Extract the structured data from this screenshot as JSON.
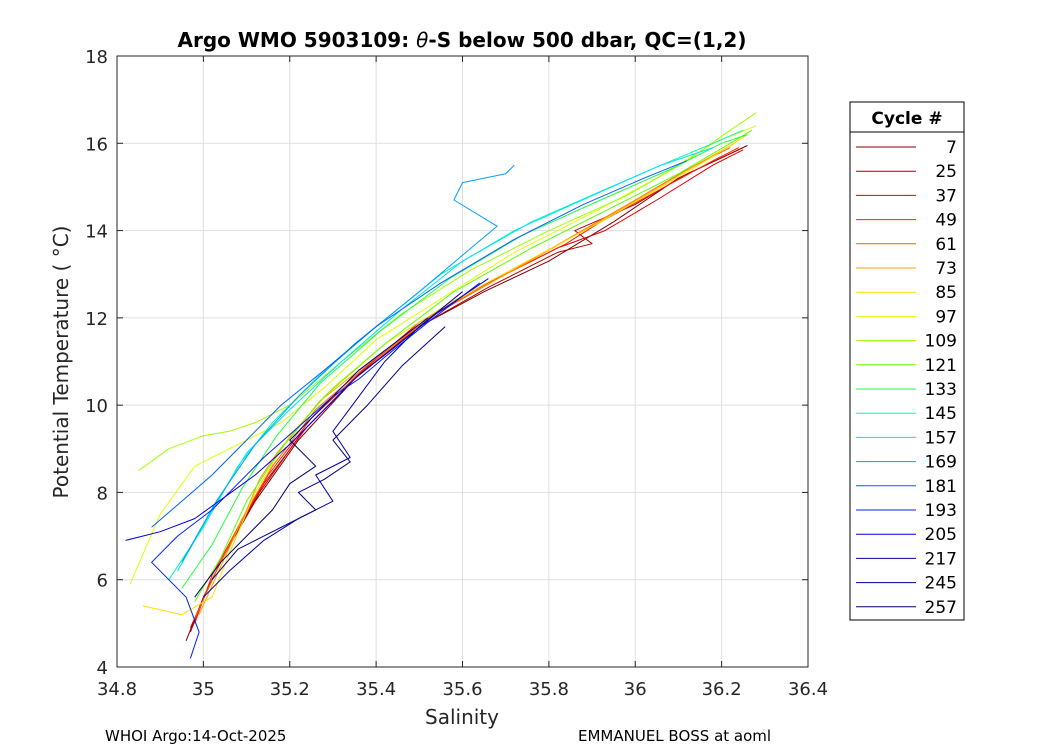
{
  "chart_data": {
    "type": "line",
    "title": "Argo WMO 5903109: θ-S below 500 dbar,  QC=(1,2)",
    "title_prefix": "Argo WMO 5903109: ",
    "title_theta": "θ",
    "title_suffix": "-S below 500 dbar,  QC=(1,2)",
    "xlabel": "Salinity",
    "ylabel": "Potential Temperature ( °C)",
    "xlim": [
      34.8,
      36.4
    ],
    "ylim": [
      4,
      18
    ],
    "xticks": [
      34.8,
      35,
      35.2,
      35.4,
      35.6,
      35.8,
      36,
      36.2,
      36.4
    ],
    "yticks": [
      4,
      6,
      8,
      10,
      12,
      14,
      16,
      18
    ],
    "xtick_labels": [
      "34.8",
      "35",
      "35.2",
      "35.4",
      "35.6",
      "35.8",
      "36",
      "36.2",
      "36.4"
    ],
    "ytick_labels": [
      "4",
      "6",
      "8",
      "10",
      "12",
      "14",
      "16",
      "18"
    ],
    "grid": true,
    "legend_position": "outside-right",
    "legend_title": "Cycle #",
    "series": [
      {
        "name": "7",
        "color": "#800000",
        "x": [
          34.96,
          35.0,
          35.05,
          35.12,
          35.22,
          35.35,
          35.5,
          35.65,
          35.8,
          35.95,
          36.1,
          36.26
        ],
        "y": [
          4.6,
          5.6,
          6.6,
          7.8,
          9.2,
          10.6,
          11.8,
          12.6,
          13.3,
          14.2,
          15.2,
          15.95
        ]
      },
      {
        "name": "25",
        "color": "#b00000",
        "x": [
          34.97,
          35.01,
          35.06,
          35.13,
          35.23,
          35.36,
          35.5,
          35.66,
          35.82,
          35.9,
          35.86,
          36.0,
          36.12,
          36.25
        ],
        "y": [
          4.8,
          5.8,
          6.8,
          8.0,
          9.4,
          10.7,
          11.8,
          12.7,
          13.5,
          13.7,
          14.0,
          14.6,
          15.3,
          15.9
        ]
      },
      {
        "name": "37",
        "color": "#e00000",
        "x": [
          34.97,
          35.02,
          35.07,
          35.14,
          35.24,
          35.37,
          35.5,
          35.66,
          35.82,
          35.93,
          36.05,
          36.18,
          36.25
        ],
        "y": [
          4.9,
          6.0,
          7.0,
          8.2,
          9.5,
          10.8,
          11.9,
          12.8,
          13.6,
          14.0,
          14.7,
          15.5,
          15.85
        ]
      },
      {
        "name": "49",
        "color": "#ff2000",
        "x": [
          34.98,
          35.02,
          35.08,
          35.15,
          35.25,
          35.38,
          35.52,
          35.68,
          35.84,
          35.92,
          36.05,
          36.18,
          36.24
        ],
        "y": [
          5.0,
          6.1,
          7.2,
          8.4,
          9.7,
          10.9,
          12.0,
          12.9,
          13.7,
          14.2,
          14.9,
          15.6,
          15.9
        ]
      },
      {
        "name": "61",
        "color": "#ff6000",
        "x": [
          34.98,
          35.03,
          35.09,
          35.16,
          35.26,
          35.39,
          35.54,
          35.7,
          35.86,
          36.0,
          36.12,
          36.22
        ],
        "y": [
          5.1,
          6.2,
          7.4,
          8.6,
          9.9,
          11.0,
          12.1,
          13.0,
          13.9,
          14.7,
          15.4,
          15.9
        ]
      },
      {
        "name": "73",
        "color": "#ff9f00",
        "x": [
          34.99,
          35.04,
          35.1,
          35.13,
          35.17,
          35.27,
          35.4,
          35.55,
          35.72,
          35.88,
          36.02,
          36.14,
          36.23
        ],
        "y": [
          5.2,
          6.3,
          7.6,
          8.3,
          8.9,
          10.1,
          11.1,
          12.2,
          13.1,
          14.0,
          14.8,
          15.5,
          16.0
        ]
      },
      {
        "name": "85",
        "color": "#ffdf00",
        "x": [
          34.86,
          34.95,
          35.02,
          35.06,
          35.12,
          35.2,
          35.3,
          35.42,
          35.58,
          35.75,
          35.92,
          36.06,
          36.18,
          36.26
        ],
        "y": [
          5.4,
          5.2,
          5.6,
          6.6,
          8.0,
          9.3,
          10.4,
          11.4,
          12.4,
          13.3,
          14.2,
          15.0,
          15.7,
          16.2
        ]
      },
      {
        "name": "97",
        "color": "#e0ff00",
        "x": [
          34.83,
          34.9,
          34.98,
          35.04,
          35.1,
          35.18,
          35.28,
          35.4,
          35.56,
          35.72,
          35.9,
          36.05,
          36.18,
          36.28
        ],
        "y": [
          5.9,
          7.5,
          8.6,
          8.9,
          9.2,
          9.6,
          10.4,
          11.5,
          12.5,
          13.5,
          14.4,
          15.2,
          16.0,
          16.4
        ]
      },
      {
        "name": "109",
        "color": "#a0ff00",
        "x": [
          34.85,
          34.92,
          35.0,
          35.06,
          35.12,
          35.2,
          35.32,
          35.46,
          35.62,
          35.8,
          35.98,
          36.12,
          36.22,
          36.28
        ],
        "y": [
          8.5,
          9.0,
          9.3,
          9.4,
          9.6,
          10.0,
          11.0,
          12.1,
          13.1,
          14.0,
          14.8,
          15.6,
          16.3,
          16.7
        ]
      },
      {
        "name": "121",
        "color": "#60ff00",
        "x": [
          34.98,
          35.04,
          35.1,
          35.18,
          35.28,
          35.42,
          35.58,
          35.76,
          35.94,
          36.1,
          36.22,
          36.27
        ],
        "y": [
          5.5,
          6.5,
          7.8,
          9.0,
          10.2,
          11.4,
          12.6,
          13.6,
          14.5,
          15.3,
          16.0,
          16.3
        ]
      },
      {
        "name": "133",
        "color": "#20ff40",
        "x": [
          34.95,
          35.02,
          35.09,
          35.17,
          35.27,
          35.41,
          35.57,
          35.74,
          35.92,
          36.08,
          36.2,
          36.26
        ],
        "y": [
          5.8,
          6.8,
          8.1,
          9.3,
          10.5,
          11.7,
          12.9,
          13.9,
          14.7,
          15.4,
          16.0,
          16.2
        ]
      },
      {
        "name": "145",
        "color": "#00ffa0",
        "x": [
          34.92,
          35.0,
          35.08,
          35.16,
          35.26,
          35.4,
          35.55,
          35.72,
          35.9,
          36.06,
          36.18,
          36.25
        ],
        "y": [
          6.0,
          7.2,
          8.6,
          9.6,
          10.6,
          11.8,
          13.0,
          14.0,
          14.8,
          15.5,
          16.0,
          16.3
        ]
      },
      {
        "name": "157",
        "color": "#00e0ff",
        "x": [
          34.94,
          35.02,
          35.1,
          35.2,
          35.32,
          35.46,
          35.6,
          35.76,
          35.92,
          36.06,
          36.18
        ],
        "y": [
          6.2,
          7.6,
          8.9,
          9.9,
          11.0,
          12.2,
          13.3,
          14.2,
          14.9,
          15.5,
          15.9
        ]
      },
      {
        "name": "169",
        "color": "#00a0ff",
        "x": [
          34.95,
          35.03,
          35.12,
          35.22,
          35.35,
          35.5,
          35.62,
          35.68,
          35.58,
          35.6,
          35.7,
          35.72
        ],
        "y": [
          6.4,
          7.8,
          9.1,
          10.2,
          11.4,
          12.6,
          13.6,
          14.1,
          14.7,
          15.1,
          15.3,
          15.5
        ]
      },
      {
        "name": "181",
        "color": "#0060ff",
        "x": [
          34.88,
          34.95,
          35.02,
          35.1,
          35.18,
          35.28,
          35.4,
          35.55,
          35.72,
          35.88,
          36.02,
          36.12
        ],
        "y": [
          7.2,
          7.8,
          8.4,
          9.2,
          10.0,
          10.8,
          11.8,
          12.8,
          13.8,
          14.6,
          15.2,
          15.6
        ]
      },
      {
        "name": "193",
        "color": "#0020ff",
        "x": [
          34.97,
          34.99,
          34.96,
          34.92,
          34.88,
          34.94,
          35.02,
          35.08,
          35.14,
          35.22,
          35.3,
          35.36,
          35.42,
          35.52,
          35.64
        ],
        "y": [
          4.2,
          4.8,
          5.6,
          6.0,
          6.4,
          7.0,
          7.6,
          8.2,
          8.8,
          9.5,
          10.2,
          10.6,
          11.1,
          11.9,
          12.8
        ]
      },
      {
        "name": "205",
        "color": "#0000e0",
        "x": [
          34.82,
          34.9,
          34.98,
          35.05,
          35.12,
          35.2,
          35.28,
          35.36,
          35.44,
          35.54,
          35.66
        ],
        "y": [
          6.9,
          7.1,
          7.4,
          7.9,
          8.4,
          9.1,
          9.9,
          10.7,
          11.3,
          12.1,
          12.9
        ]
      },
      {
        "name": "217",
        "color": "#0000b0",
        "x": [
          35.0,
          35.06,
          35.14,
          35.22,
          35.3,
          35.26,
          35.34,
          35.3,
          35.36,
          35.42,
          35.5,
          35.6
        ],
        "y": [
          5.6,
          6.2,
          6.9,
          7.4,
          7.8,
          8.4,
          8.8,
          9.4,
          10.2,
          11.0,
          11.8,
          12.6
        ]
      },
      {
        "name": "245",
        "color": "#000090",
        "x": [
          35.02,
          35.08,
          35.14,
          35.2,
          35.26,
          35.22,
          35.28,
          35.34,
          35.3,
          35.38,
          35.46,
          35.56
        ],
        "y": [
          6.0,
          6.7,
          7.0,
          7.3,
          7.6,
          8.0,
          8.3,
          8.7,
          9.2,
          10.0,
          10.9,
          11.8
        ]
      },
      {
        "name": "257",
        "color": "#000070",
        "x": [
          34.98,
          35.04,
          35.1,
          35.16,
          35.2,
          35.26,
          35.2,
          35.26,
          35.32,
          35.36,
          35.44,
          35.52
        ],
        "y": [
          5.6,
          6.4,
          7.0,
          7.6,
          8.2,
          8.6,
          9.2,
          9.8,
          10.4,
          10.8,
          11.4,
          12.0
        ]
      }
    ]
  },
  "footer": {
    "left": "WHOI Argo:14-Oct-2025",
    "right": "EMMANUEL BOSS at aoml"
  }
}
